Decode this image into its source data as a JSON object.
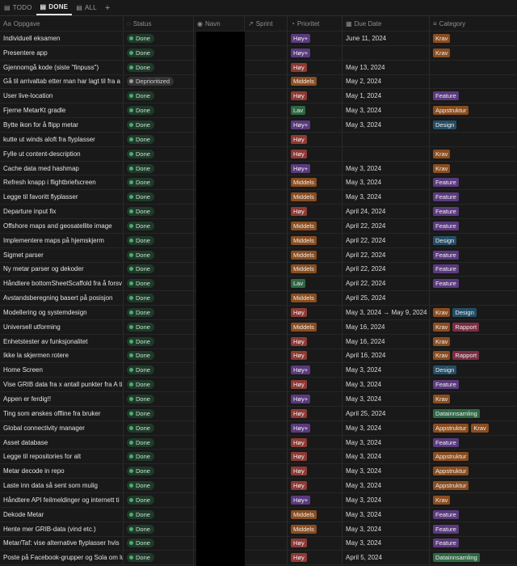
{
  "colors": {
    "Høy+": "#5a3a7e",
    "Høy": "#8e3a35",
    "Middels": "#8a4d1f",
    "Lav": "#2f6844",
    "Krav": "#8a4d1f",
    "Feature": "#5a3a7e",
    "Appstruktur": "#8a4d1f",
    "Design": "#244e66",
    "Rapport": "#7a2e43",
    "Datainnsamling": "#2f6844"
  },
  "tabs": [
    {
      "icon": "table-icon",
      "label": "TODO",
      "active": false
    },
    {
      "icon": "table-icon",
      "label": "DONE",
      "active": true
    },
    {
      "icon": "table-icon",
      "label": "ALL",
      "active": false
    }
  ],
  "add_label": "+",
  "headers": [
    {
      "icon": "Aa",
      "label": "Oppgave"
    },
    {
      "icon": "◌",
      "label": "Status"
    },
    {
      "icon": "◉",
      "label": "Navn"
    },
    {
      "icon": "↗",
      "label": "Sprint"
    },
    {
      "icon": "◔",
      "label": "Prioritet"
    },
    {
      "icon": "▦",
      "label": "Due Date"
    },
    {
      "icon": "≡",
      "label": "Category"
    }
  ],
  "rows": [
    {
      "task": "Individuell eksamen",
      "status": "Done",
      "priority": "Høy+",
      "due": "June 11, 2024",
      "categories": [
        "Krav"
      ]
    },
    {
      "task": "Presentere app",
      "status": "Done",
      "priority": "Høy+",
      "due": "",
      "categories": [
        "Krav"
      ]
    },
    {
      "task": "Gjennomgå kode (siste \"finpuss\")",
      "status": "Done",
      "priority": "Høy",
      "due": "May 13, 2024",
      "categories": []
    },
    {
      "task": "Gå til arrivaltab etter man har lagt til fra a",
      "status": "Deprioritized",
      "priority": "Middels",
      "due": "May 2, 2024",
      "categories": []
    },
    {
      "task": "User live-location",
      "status": "Done",
      "priority": "Høy",
      "due": "May 1, 2024",
      "categories": [
        "Feature"
      ]
    },
    {
      "task": "Fjerne MetarKt gradle",
      "status": "Done",
      "priority": "Lav",
      "due": "May 3, 2024",
      "categories": [
        "Appstruktur"
      ]
    },
    {
      "task": "Bytte ikon for å flipp metar",
      "status": "Done",
      "priority": "Høy+",
      "due": "May 3, 2024",
      "categories": [
        "Design"
      ]
    },
    {
      "task": "kutte ut winds aloft fra flyplasser",
      "status": "Done",
      "priority": "Høy",
      "due": "",
      "categories": []
    },
    {
      "task": "Fylle ut content-description",
      "status": "Done",
      "priority": "Høy",
      "due": "",
      "categories": [
        "Krav"
      ]
    },
    {
      "task": "Cache data med hashmap",
      "status": "Done",
      "priority": "Høy+",
      "due": "May 3, 2024",
      "categories": [
        "Krav"
      ]
    },
    {
      "task": "Refresh knapp i flightbriefscreen",
      "status": "Done",
      "priority": "Middels",
      "due": "May 3, 2024",
      "categories": [
        "Feature"
      ]
    },
    {
      "task": "Legge til favoritt flyplasser",
      "status": "Done",
      "priority": "Middels",
      "due": "May 3, 2024",
      "categories": [
        "Feature"
      ]
    },
    {
      "task": "Departure input fix",
      "status": "Done",
      "priority": "Høy",
      "due": "April 24, 2024",
      "categories": [
        "Feature"
      ]
    },
    {
      "task": "Offshore maps and geosatellite image",
      "status": "Done",
      "priority": "Middels",
      "due": "April 22, 2024",
      "categories": [
        "Feature"
      ]
    },
    {
      "task": "Implementere maps på hjemskjerm",
      "status": "Done",
      "priority": "Middels",
      "due": "April 22, 2024",
      "categories": [
        "Design"
      ]
    },
    {
      "task": "Sigmet parser",
      "status": "Done",
      "priority": "Middels",
      "due": "April 22, 2024",
      "categories": [
        "Feature"
      ]
    },
    {
      "task": "Ny metar parser og dekoder",
      "status": "Done",
      "priority": "Middels",
      "due": "April 22, 2024",
      "categories": [
        "Feature"
      ]
    },
    {
      "task": "Håndtere bottomSheetScaffold fra å forsv",
      "status": "Done",
      "priority": "Lav",
      "due": "April 22, 2024",
      "categories": [
        "Feature"
      ]
    },
    {
      "task": "Avstandsberegning basert på posisjon",
      "status": "Done",
      "priority": "Middels",
      "due": "April 25, 2024",
      "categories": []
    },
    {
      "task": "Modellering og systemdesign",
      "status": "Done",
      "priority": "Høy",
      "due": "May 3, 2024 → May 9, 2024",
      "categories": [
        "Krav",
        "Design"
      ]
    },
    {
      "task": "Universell utforming",
      "status": "Done",
      "priority": "Middels",
      "due": "May 16, 2024",
      "categories": [
        "Krav",
        "Rapport"
      ]
    },
    {
      "task": "Enhetstester av funksjonalitet",
      "status": "Done",
      "priority": "Høy",
      "due": "May 16, 2024",
      "categories": [
        "Krav"
      ]
    },
    {
      "task": "Ikke la skjermen rotere",
      "status": "Done",
      "priority": "Høy",
      "due": "April 16, 2024",
      "categories": [
        "Krav",
        "Rapport"
      ]
    },
    {
      "task": "Home Screen",
      "status": "Done",
      "priority": "Høy+",
      "due": "May 3, 2024",
      "categories": [
        "Design"
      ]
    },
    {
      "task": "Vise GRIB data fra x antall punkter fra A ti",
      "status": "Done",
      "priority": "Høy",
      "due": "May 3, 2024",
      "categories": [
        "Feature"
      ]
    },
    {
      "task": "Appen er ferdig!!",
      "status": "Done",
      "priority": "Høy+",
      "due": "May 3, 2024",
      "categories": [
        "Krav"
      ]
    },
    {
      "task": "Ting som ønskes offline fra bruker",
      "status": "Done",
      "priority": "Høy",
      "due": "April 25, 2024",
      "categories": [
        "Datainnsamling"
      ]
    },
    {
      "task": "Global connectivity manager",
      "status": "Done",
      "priority": "Høy+",
      "due": "May 3, 2024",
      "categories": [
        "Appstruktur",
        "Krav"
      ]
    },
    {
      "task": "Asset database",
      "status": "Done",
      "priority": "Høy",
      "due": "May 3, 2024",
      "categories": [
        "Feature"
      ]
    },
    {
      "task": "Legge til repositories for alt",
      "status": "Done",
      "priority": "Høy",
      "due": "May 3, 2024",
      "categories": [
        "Appstruktur"
      ]
    },
    {
      "task": "Metar decode in repo",
      "status": "Done",
      "priority": "Høy",
      "due": "May 3, 2024",
      "categories": [
        "Appstruktur"
      ]
    },
    {
      "task": "Laste inn data så sent som mulig",
      "status": "Done",
      "priority": "Høy",
      "due": "May 3, 2024",
      "categories": [
        "Appstruktur"
      ]
    },
    {
      "task": "Håndtere API feilmeldinger og internett ti",
      "status": "Done",
      "priority": "Høy+",
      "due": "May 3, 2024",
      "categories": [
        "Krav"
      ]
    },
    {
      "task": "Dekode Metar",
      "status": "Done",
      "priority": "Middels",
      "due": "May 3, 2024",
      "categories": [
        "Feature"
      ]
    },
    {
      "task": "Hente mer GRIB-data (vind etc.)",
      "status": "Done",
      "priority": "Middels",
      "due": "May 3, 2024",
      "categories": [
        "Feature"
      ]
    },
    {
      "task": "Metar/Taf: vise alternative flyplasser hvis",
      "status": "Done",
      "priority": "Høy",
      "due": "May 3, 2024",
      "categories": [
        "Feature"
      ]
    },
    {
      "task": "Poste på Facebook-grupper og Sola om luk",
      "status": "Done",
      "priority": "Høy",
      "due": "April 5, 2024",
      "categories": [
        "Datainnsamling"
      ]
    }
  ]
}
